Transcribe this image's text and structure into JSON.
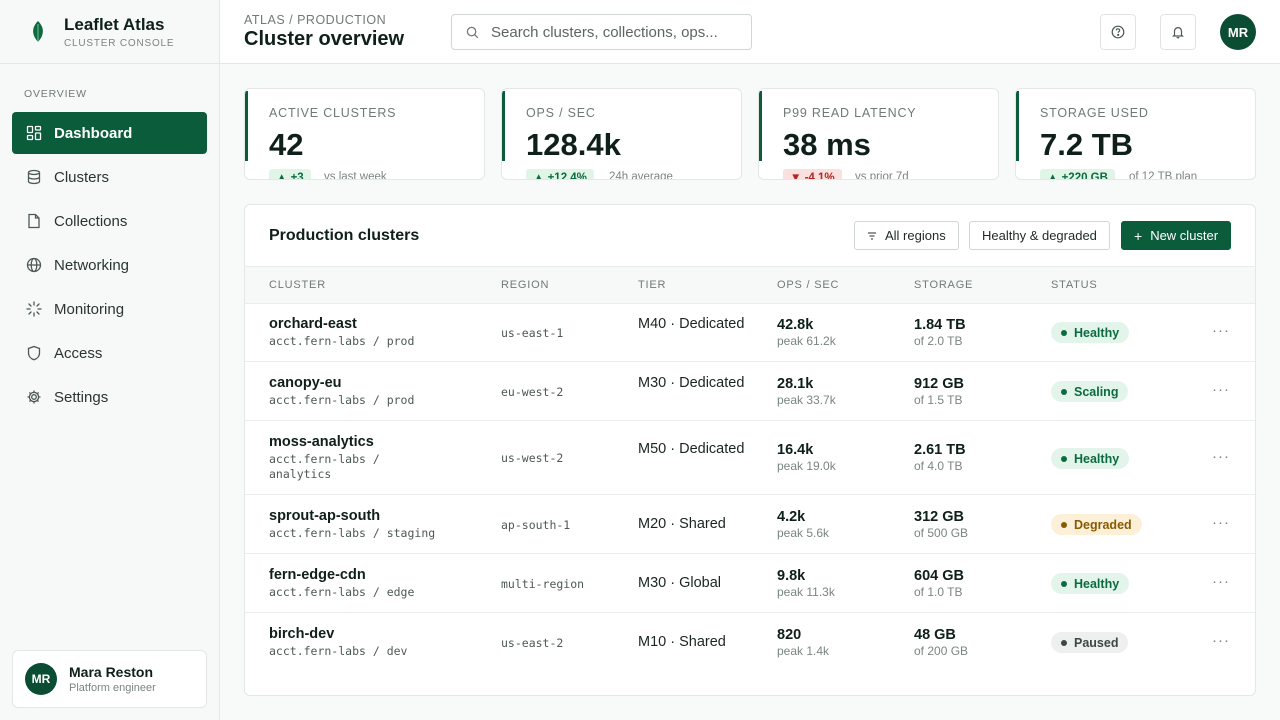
{
  "brand": {
    "name": "Leaflet Atlas",
    "subtitle": "CLUSTER CONSOLE"
  },
  "sidebar": {
    "section_label": "OVERVIEW",
    "items": [
      {
        "label": "Dashboard",
        "icon": "dashboard-icon",
        "active": true
      },
      {
        "label": "Clusters",
        "icon": "database-icon"
      },
      {
        "label": "Collections",
        "icon": "file-icon"
      },
      {
        "label": "Networking",
        "icon": "globe-icon"
      },
      {
        "label": "Monitoring",
        "icon": "spinner-icon"
      },
      {
        "label": "Access",
        "icon": "shield-icon"
      },
      {
        "label": "Settings",
        "icon": "gear-icon"
      }
    ],
    "user": {
      "initials": "MR",
      "name": "Mara Reston",
      "role": "Platform engineer"
    }
  },
  "header": {
    "breadcrumb": "ATLAS / PRODUCTION",
    "title": "Cluster overview",
    "search_placeholder": "Search clusters, collections, ops...",
    "avatar_initials": "MR"
  },
  "stats": [
    {
      "label": "ACTIVE CLUSTERS",
      "value": "42",
      "delta": "+3",
      "delta_dir": "up",
      "note": "vs last week"
    },
    {
      "label": "OPS / SEC",
      "value": "128.4k",
      "delta": "+12.4%",
      "delta_dir": "up",
      "note": "24h average"
    },
    {
      "label": "P99 READ LATENCY",
      "value": "38 ms",
      "delta": "-4.1%",
      "delta_dir": "down",
      "note": "vs prior 7d"
    },
    {
      "label": "STORAGE USED",
      "value": "7.2 TB",
      "delta": "+220 GB",
      "delta_dir": "up",
      "note": "of 12 TB plan"
    }
  ],
  "table": {
    "title": "Production clusters",
    "filter_regions": "All regions",
    "filter_status": "Healthy & degraded",
    "new_button": "New cluster",
    "columns": [
      "CLUSTER",
      "REGION",
      "TIER",
      "OPS / SEC",
      "STORAGE",
      "STATUS"
    ],
    "rows": [
      {
        "name": "orchard-east",
        "account": "acct.fern-labs / prod",
        "region": "us-east-1",
        "tier": "M40 · Dedicated",
        "ops": "42.8k",
        "ops_peak": "peak 61.2k",
        "storage": "1.84 TB",
        "storage_of": "of 2.0 TB",
        "status": "Healthy"
      },
      {
        "name": "canopy-eu",
        "account": "acct.fern-labs / prod",
        "region": "eu-west-2",
        "tier": "M30 · Dedicated",
        "ops": "28.1k",
        "ops_peak": "peak 33.7k",
        "storage": "912 GB",
        "storage_of": "of 1.5 TB",
        "status": "Scaling"
      },
      {
        "name": "moss-analytics",
        "account": "acct.fern-labs / analytics",
        "region": "us-west-2",
        "tier": "M50 · Dedicated",
        "ops": "16.4k",
        "ops_peak": "peak 19.0k",
        "storage": "2.61 TB",
        "storage_of": "of 4.0 TB",
        "status": "Healthy"
      },
      {
        "name": "sprout-ap-south",
        "account": "acct.fern-labs / staging",
        "region": "ap-south-1",
        "tier": "M20 · Shared",
        "ops": "4.2k",
        "ops_peak": "peak 5.6k",
        "storage": "312 GB",
        "storage_of": "of 500 GB",
        "status": "Degraded"
      },
      {
        "name": "fern-edge-cdn",
        "account": "acct.fern-labs / edge",
        "region": "multi-region",
        "tier": "M30 · Global",
        "ops": "9.8k",
        "ops_peak": "peak 11.3k",
        "storage": "604 GB",
        "storage_of": "of 1.0 TB",
        "status": "Healthy"
      },
      {
        "name": "birch-dev",
        "account": "acct.fern-labs / dev",
        "region": "us-east-2",
        "tier": "M10 · Shared",
        "ops": "820",
        "ops_peak": "peak 1.4k",
        "storage": "48 GB",
        "storage_of": "of 200 GB",
        "status": "Paused"
      }
    ]
  },
  "colors": {
    "brand": "#0b5c3b",
    "healthy": "#0b6b3f",
    "degraded": "#8a5a00",
    "negative": "#b3261e"
  }
}
